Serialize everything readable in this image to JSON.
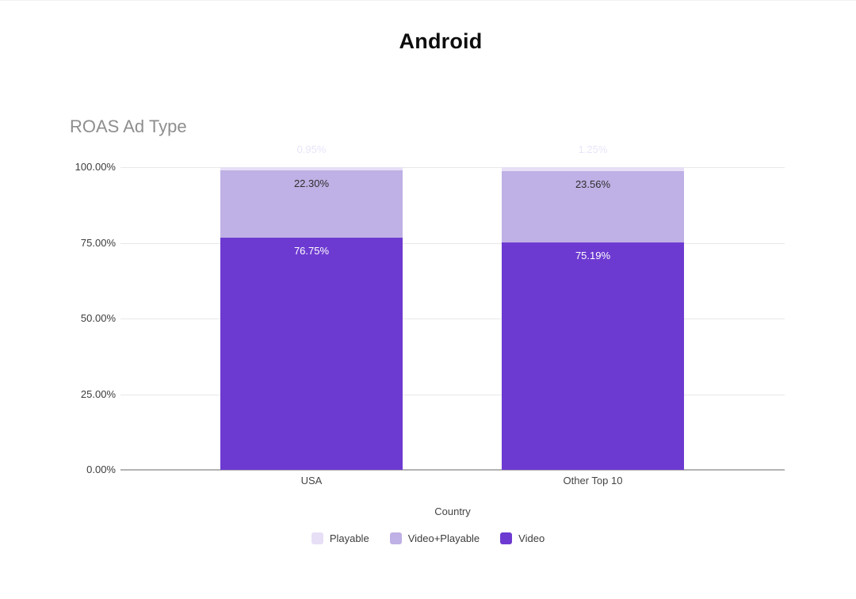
{
  "page": {
    "title": "Android"
  },
  "chart_data": {
    "type": "bar",
    "variant": "stacked-100-percent-column",
    "title": "ROAS Ad Type",
    "xlabel": "Country",
    "categories": [
      "USA",
      "Other Top 10"
    ],
    "series": [
      {
        "name": "Playable",
        "color": "#e6dff6",
        "label_color": "#eae3f9",
        "values": [
          0.95,
          1.25
        ],
        "labels": [
          "0.95%",
          "1.25%"
        ]
      },
      {
        "name": "Video+Playable",
        "color": "#bfb0e5",
        "label_color": "#2e2e2e",
        "values": [
          22.3,
          23.56
        ],
        "labels": [
          "22.30%",
          "23.56%"
        ]
      },
      {
        "name": "Video",
        "color": "#6d3ad1",
        "label_color": "#ffffff",
        "values": [
          76.75,
          75.19
        ],
        "labels": [
          "76.75%",
          "75.19%"
        ]
      }
    ],
    "yticks": [
      {
        "label": "100.00%",
        "value": 100
      },
      {
        "label": "75.00%",
        "value": 75
      },
      {
        "label": "50.00%",
        "value": 50
      },
      {
        "label": "25.00%",
        "value": 25
      },
      {
        "label": "0.00%",
        "value": 0
      }
    ],
    "ylim": [
      0,
      100
    ],
    "grid": true,
    "legend_position": "bottom"
  },
  "colors": {
    "grid": "#e8e8e8",
    "axis_baseline": "#b3b3b3",
    "tick_text": "#3c3c3c",
    "page_title_text": "#0d0d0d",
    "chart_title_text": "#8e8e8e"
  }
}
